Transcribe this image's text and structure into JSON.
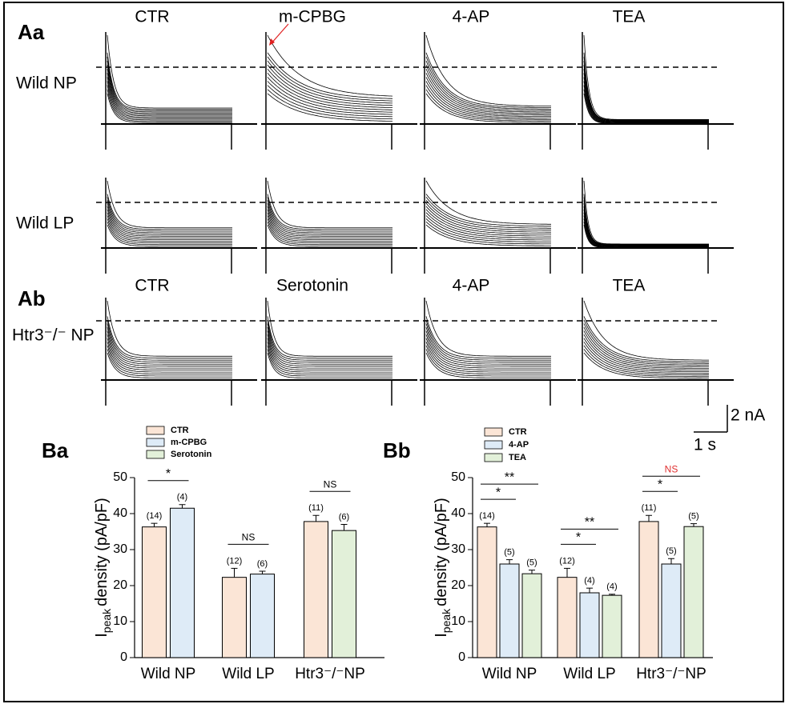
{
  "traces": {
    "rows": [
      {
        "panel": "Aa",
        "label": "Wild NP",
        "columns": [
          "CTR",
          "m-CPBG",
          "4-AP",
          "TEA"
        ]
      },
      {
        "label": "Wild LP"
      },
      {
        "panel": "Ab",
        "label": "Htr3⁻/⁻ NP",
        "columns": [
          "CTR",
          "Serotonin",
          "4-AP",
          "TEA"
        ]
      }
    ],
    "scale": {
      "current": "2 nA",
      "time": "1 s"
    }
  },
  "chart_data": [
    {
      "type": "bar",
      "panel": "Ba",
      "ylabel": [
        "I",
        "peak",
        "density (pA/pF)"
      ],
      "categories": [
        "Wild NP",
        "Wild LP",
        "Htr3⁻/⁻NP"
      ],
      "series": [
        {
          "name": "CTR",
          "color": "#fbe5d6",
          "values": [
            36.3,
            22.3,
            37.8
          ],
          "errors": [
            1,
            2.5,
            1.7
          ],
          "n_labels": [
            "(14)",
            "(12)",
            "(11)"
          ]
        },
        {
          "name": "m-CPBG",
          "color": "#deebf7",
          "values": [
            41.5,
            23.2,
            null
          ],
          "errors": [
            1,
            0.8,
            null
          ],
          "n_labels": [
            "(4)",
            "(6)",
            null
          ]
        },
        {
          "name": "Serotonin",
          "color": "#e2f0d9",
          "values": [
            null,
            null,
            35.3
          ],
          "errors": [
            null,
            null,
            1.7
          ],
          "n_labels": [
            null,
            null,
            "(6)"
          ]
        }
      ],
      "significance": [
        [
          {
            "label": "*",
            "color": "#000000"
          }
        ],
        [
          {
            "label": "NS",
            "color": "#000000"
          }
        ],
        [
          {
            "label": "NS",
            "color": "#000000"
          }
        ]
      ],
      "ylim": [
        0,
        50
      ],
      "yticks": [
        0,
        10,
        20,
        30,
        40,
        50
      ]
    },
    {
      "type": "bar",
      "panel": "Bb",
      "ylabel": [
        "I",
        "peak",
        "density (pA/pF)"
      ],
      "categories": [
        "Wild NP",
        "Wild LP",
        "Htr3⁻/⁻NP"
      ],
      "series": [
        {
          "name": "CTR",
          "color": "#fbe5d6",
          "values": [
            36.3,
            22.3,
            37.8
          ],
          "errors": [
            1,
            2.5,
            1.7
          ],
          "n_labels": [
            "(14)",
            "(12)",
            "(11)"
          ]
        },
        {
          "name": "4-AP",
          "color": "#deebf7",
          "values": [
            26,
            18,
            26
          ],
          "errors": [
            1.2,
            1.3,
            1.5
          ],
          "n_labels": [
            "(5)",
            "(4)",
            "(5)"
          ]
        },
        {
          "name": "TEA",
          "color": "#e2f0d9",
          "values": [
            23.3,
            17.3,
            36.4
          ],
          "errors": [
            1,
            0.3,
            0.8
          ],
          "n_labels": [
            "(5)",
            "(4)",
            "(5)"
          ]
        }
      ],
      "significance": [
        [
          {
            "label": "**",
            "color": "#000000"
          },
          {
            "label": "*",
            "color": "#000000"
          }
        ],
        [
          {
            "label": "**",
            "color": "#000000"
          },
          {
            "label": "*",
            "color": "#000000"
          }
        ],
        [
          {
            "label": "NS",
            "color": "#e03030"
          },
          {
            "label": "*",
            "color": "#000000"
          }
        ]
      ],
      "ylim": [
        0,
        50
      ],
      "yticks": [
        0,
        10,
        20,
        30,
        40,
        50
      ]
    }
  ]
}
